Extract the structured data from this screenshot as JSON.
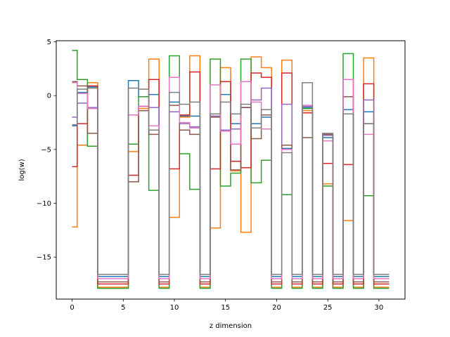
{
  "chart_data": {
    "type": "line",
    "step": "mid",
    "xlabel": "z dimension",
    "ylabel": "log(w)",
    "xlim": [
      -1.55,
      32.55
    ],
    "ylim": [
      -18.9,
      5.1
    ],
    "x": [
      0,
      1,
      2,
      3,
      4,
      5,
      6,
      7,
      8,
      9,
      10,
      11,
      12,
      13,
      14,
      15,
      16,
      17,
      18,
      19,
      20,
      21,
      22,
      23,
      24,
      25,
      26,
      27,
      28,
      29,
      30,
      31
    ],
    "xticks": [
      0,
      5,
      10,
      15,
      20,
      25,
      30
    ],
    "yticks": [
      5,
      0,
      -5,
      -10,
      -15
    ],
    "yticklabels": [
      "5",
      "0",
      "−5",
      "−10",
      "−15"
    ],
    "series": [
      {
        "color": "#1f77b4",
        "values": [
          -2.8,
          0.3,
          0.8,
          -16.8,
          -16.8,
          -16.8,
          1.4,
          -0.1,
          0.1,
          -16.8,
          -0.6,
          -1.9,
          -1.9,
          -16.8,
          -1.9,
          0.1,
          -2.6,
          -1.1,
          -2.6,
          -2.0,
          -16.8,
          -4.9,
          -16.8,
          -1.1,
          -16.8,
          -3.9,
          -16.8,
          -1.3,
          -16.8,
          -1.5,
          -16.8,
          -16.8
        ]
      },
      {
        "color": "#ff7f0e",
        "values": [
          -12.2,
          -4.6,
          1.2,
          -17.8,
          -17.8,
          -17.8,
          -5.2,
          -1.2,
          3.4,
          -17.8,
          -11.3,
          -2.0,
          3.7,
          -17.8,
          -12.3,
          2.6,
          -7.0,
          -12.7,
          3.6,
          2.6,
          -17.8,
          3.3,
          -17.8,
          -1.4,
          -17.8,
          -8.2,
          -17.8,
          -11.6,
          -17.8,
          3.5,
          -17.8,
          -17.8
        ]
      },
      {
        "color": "#2ca02c",
        "values": [
          4.2,
          1.5,
          -4.7,
          -17.9,
          -17.9,
          -17.9,
          -4.5,
          -0.1,
          -8.8,
          -17.9,
          3.7,
          -5.4,
          -8.7,
          -17.9,
          3.4,
          -8.4,
          -7.2,
          3.4,
          -8.1,
          -6.0,
          -17.9,
          -9.2,
          -17.9,
          -1.2,
          -17.9,
          -8.4,
          -17.9,
          3.9,
          -17.9,
          -9.3,
          -17.9,
          -17.9
        ]
      },
      {
        "color": "#d62728",
        "values": [
          -6.6,
          -2.6,
          0.9,
          -17.5,
          -17.5,
          -17.5,
          -7.4,
          -1.0,
          1.5,
          -17.5,
          -6.8,
          -1.8,
          2.2,
          -17.5,
          -6.8,
          1.3,
          -6.1,
          -6.7,
          2.1,
          1.7,
          -17.5,
          2.1,
          -17.5,
          -1.6,
          -17.5,
          -6.3,
          -17.5,
          -6.4,
          -17.5,
          1.1,
          -17.5,
          -17.5
        ]
      },
      {
        "color": "#9467bd",
        "values": [
          -2.0,
          -0.7,
          -1.1,
          -16.6,
          -16.6,
          -16.6,
          -1.8,
          -1.0,
          -1.1,
          -16.6,
          -1.5,
          -2.6,
          -2.9,
          -16.6,
          -1.9,
          -3.2,
          -3.1,
          -1.1,
          -0.4,
          0.7,
          -16.6,
          -0.8,
          -16.6,
          -1.0,
          -16.6,
          -3.7,
          -16.6,
          1.5,
          -16.6,
          -0.4,
          -16.6,
          -16.6
        ]
      },
      {
        "color": "#8c564b",
        "values": [
          1.3,
          0.9,
          -3.5,
          -17.3,
          -17.3,
          -17.3,
          -8.0,
          -1.4,
          -3.6,
          -17.3,
          -0.9,
          -3.2,
          -3.6,
          -17.3,
          -2.0,
          -3.3,
          -6.9,
          -1.1,
          -4.0,
          -1.8,
          -17.3,
          -4.6,
          -17.3,
          -3.9,
          -17.3,
          -3.6,
          -17.3,
          -0.1,
          -17.3,
          -2.6,
          -17.3,
          -17.3
        ]
      },
      {
        "color": "#e377c2",
        "values": [
          1.2,
          0.2,
          -1.2,
          -17.0,
          -17.0,
          -17.0,
          -1.8,
          -1.0,
          -2.8,
          -17.0,
          1.7,
          -2.5,
          -3.0,
          -17.0,
          1.0,
          -3.3,
          -4.5,
          1.3,
          -0.6,
          -3.1,
          -17.0,
          -5.0,
          -17.0,
          -0.9,
          -17.0,
          -4.2,
          -17.0,
          1.5,
          -17.0,
          -3.6,
          -17.0,
          -17.0
        ]
      },
      {
        "color": "#7f7f7f",
        "values": [
          -2.7,
          0.6,
          0.7,
          -16.6,
          -16.6,
          -16.6,
          0.7,
          0.6,
          -3.2,
          -16.6,
          0.3,
          -0.8,
          -0.6,
          -16.6,
          -1.7,
          -0.6,
          -1.7,
          -0.8,
          -3.0,
          -1.3,
          -16.6,
          -5.3,
          -16.6,
          1.2,
          -16.6,
          -3.5,
          -16.6,
          -1.7,
          -16.6,
          -2.6,
          -16.6,
          -16.6
        ]
      }
    ]
  }
}
